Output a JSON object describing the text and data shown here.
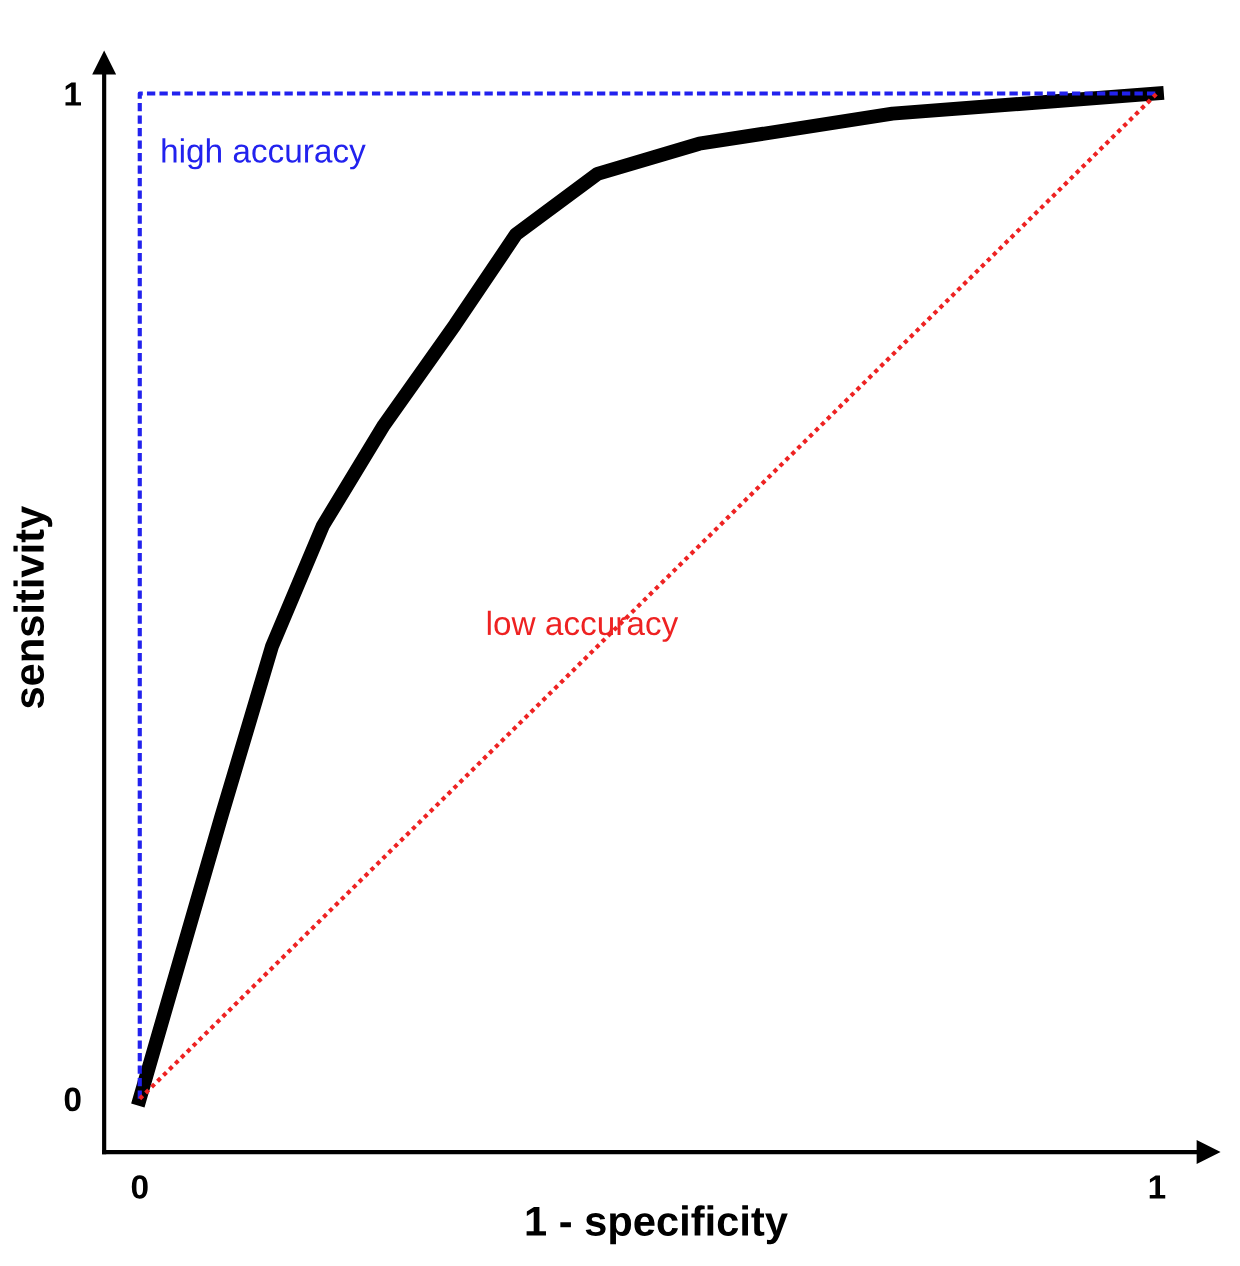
{
  "chart_data": {
    "type": "line",
    "xlabel": "1 - specificity",
    "ylabel": "sensitivity",
    "xlim": [
      -0.035,
      1.05
    ],
    "ylim": [
      -0.053,
      1.03
    ],
    "xticks": [
      0,
      1
    ],
    "yticks": [
      0,
      1
    ],
    "grid": false,
    "legend": false,
    "series": [
      {
        "x": [
          0,
          0.04,
          0.08,
          0.13,
          0.18,
          0.24,
          0.31,
          0.37,
          0.45,
          0.55,
          0.74,
          1
        ],
        "values": [
          0,
          0.14,
          0.28,
          0.45,
          0.57,
          0.67,
          0.77,
          0.86,
          0.92,
          0.95,
          0.98,
          1
        ],
        "color": "#000000",
        "line_style": "solid"
      },
      {
        "name": "high accuracy",
        "x": [
          0,
          0,
          1
        ],
        "values": [
          0,
          1,
          1
        ],
        "color": "#2222ee",
        "line_style": "dashed"
      },
      {
        "name": "low accuracy",
        "x": [
          0,
          1
        ],
        "values": [
          0,
          1
        ],
        "color": "#ee2222",
        "line_style": "dotted"
      }
    ]
  }
}
